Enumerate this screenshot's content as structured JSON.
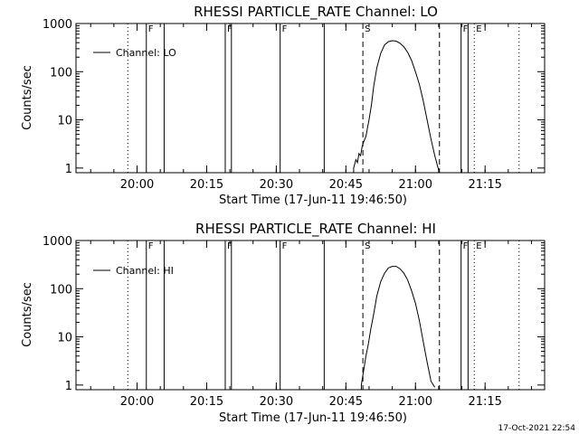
{
  "footer": {
    "timestamp": "17-Oct-2021 22:54"
  },
  "chart_data": [
    {
      "type": "line",
      "title": "RHESSI PARTICLE_RATE Channel: LO",
      "xlabel": "Start Time (17-Jun-11 19:46:50)",
      "ylabel": "Counts/sec",
      "yscale": "log",
      "xlim": [
        19.7806,
        21.4639
      ],
      "ylim": [
        0.8,
        1000
      ],
      "x_ticks": [
        {
          "value": 20.0,
          "label": "20:00"
        },
        {
          "value": 20.25,
          "label": "20:15"
        },
        {
          "value": 20.5,
          "label": "20:30"
        },
        {
          "value": 20.75,
          "label": "20:45"
        },
        {
          "value": 21.0,
          "label": "21:00"
        },
        {
          "value": 21.25,
          "label": "21:15"
        }
      ],
      "y_ticks": [
        {
          "value": 1,
          "label": "1"
        },
        {
          "value": 10,
          "label": "10"
        },
        {
          "value": 100,
          "label": "100"
        },
        {
          "value": 1000,
          "label": "1000"
        }
      ],
      "legend": {
        "label": "Channel: LO",
        "position": "top-left"
      },
      "markers": [
        {
          "x": 19.9667,
          "style": "dotted",
          "label": ""
        },
        {
          "x": 20.0333,
          "style": "solid",
          "label": "F"
        },
        {
          "x": 20.0972,
          "style": "solid",
          "label": ""
        },
        {
          "x": 20.3167,
          "style": "solid",
          "label": "F"
        },
        {
          "x": 20.3389,
          "style": "solid",
          "label": ""
        },
        {
          "x": 20.5139,
          "style": "solid",
          "label": "F"
        },
        {
          "x": 20.6722,
          "style": "solid",
          "label": ""
        },
        {
          "x": 20.8111,
          "style": "dashed",
          "label": "S"
        },
        {
          "x": 21.0861,
          "style": "dashed",
          "label": ""
        },
        {
          "x": 21.1639,
          "style": "solid",
          "label": "F"
        },
        {
          "x": 21.1889,
          "style": "solid",
          "label": ""
        },
        {
          "x": 21.2111,
          "style": "dotted",
          "label": "E"
        },
        {
          "x": 21.3722,
          "style": "dotted",
          "label": ""
        }
      ],
      "series": [
        {
          "x": [
            20.7778,
            20.7861,
            20.7917,
            20.7972,
            20.8028,
            20.8083,
            20.8139,
            20.8222,
            20.8278,
            20.8333,
            20.8417,
            20.85,
            20.8611,
            20.875,
            20.8889,
            20.9028,
            20.9167,
            20.9306,
            20.9444,
            20.9583,
            20.9722,
            20.9861,
            21.0,
            21.0139,
            21.0278,
            21.0417,
            21.0556,
            21.0694,
            21.0833
          ],
          "y": [
            1.0,
            1.5,
            1.3,
            2.0,
            1.8,
            2.8,
            3.5,
            4.5,
            7.0,
            10.0,
            20.0,
            50.0,
            120.0,
            240.0,
            360.0,
            420.0,
            440.0,
            430.0,
            390.0,
            330.0,
            250.0,
            170.0,
            100.0,
            55.0,
            25.0,
            10.0,
            4.0,
            1.8,
            0.9
          ]
        }
      ]
    },
    {
      "type": "line",
      "title": "RHESSI PARTICLE_RATE Channel: HI",
      "xlabel": "Start Time (17-Jun-11 19:46:50)",
      "ylabel": "Counts/sec",
      "yscale": "log",
      "xlim": [
        19.7806,
        21.4639
      ],
      "ylim": [
        0.8,
        1000
      ],
      "x_ticks": [
        {
          "value": 20.0,
          "label": "20:00"
        },
        {
          "value": 20.25,
          "label": "20:15"
        },
        {
          "value": 20.5,
          "label": "20:30"
        },
        {
          "value": 20.75,
          "label": "20:45"
        },
        {
          "value": 21.0,
          "label": "21:00"
        },
        {
          "value": 21.25,
          "label": "21:15"
        }
      ],
      "y_ticks": [
        {
          "value": 1,
          "label": "1"
        },
        {
          "value": 10,
          "label": "10"
        },
        {
          "value": 100,
          "label": "100"
        },
        {
          "value": 1000,
          "label": "1000"
        }
      ],
      "legend": {
        "label": "Channel: HI",
        "position": "top-left"
      },
      "markers": [
        {
          "x": 19.9667,
          "style": "dotted",
          "label": ""
        },
        {
          "x": 20.0333,
          "style": "solid",
          "label": "F"
        },
        {
          "x": 20.0972,
          "style": "solid",
          "label": ""
        },
        {
          "x": 20.3167,
          "style": "solid",
          "label": "F"
        },
        {
          "x": 20.3389,
          "style": "solid",
          "label": ""
        },
        {
          "x": 20.5139,
          "style": "solid",
          "label": "F"
        },
        {
          "x": 20.6722,
          "style": "solid",
          "label": ""
        },
        {
          "x": 20.8111,
          "style": "dashed",
          "label": "S"
        },
        {
          "x": 21.0861,
          "style": "dashed",
          "label": ""
        },
        {
          "x": 21.1639,
          "style": "solid",
          "label": "F"
        },
        {
          "x": 21.1889,
          "style": "solid",
          "label": ""
        },
        {
          "x": 21.2111,
          "style": "dotted",
          "label": "E"
        },
        {
          "x": 21.3722,
          "style": "dotted",
          "label": ""
        }
      ],
      "series": [
        {
          "x": [
            20.8056,
            20.8111,
            20.8167,
            20.8222,
            20.8306,
            20.8389,
            20.85,
            20.8611,
            20.875,
            20.8889,
            20.9028,
            20.9167,
            20.9306,
            20.9444,
            20.9583,
            20.9722,
            20.9861,
            21.0,
            21.0139,
            21.0278,
            21.0417,
            21.0556,
            21.0694
          ],
          "y": [
            1.0,
            1.6,
            2.5,
            4.0,
            7.0,
            14.0,
            30.0,
            70.0,
            140.0,
            210.0,
            270.0,
            290.0,
            290.0,
            260.0,
            210.0,
            150.0,
            90.0,
            50.0,
            22.0,
            8.0,
            3.0,
            1.2,
            0.9
          ]
        }
      ]
    }
  ]
}
